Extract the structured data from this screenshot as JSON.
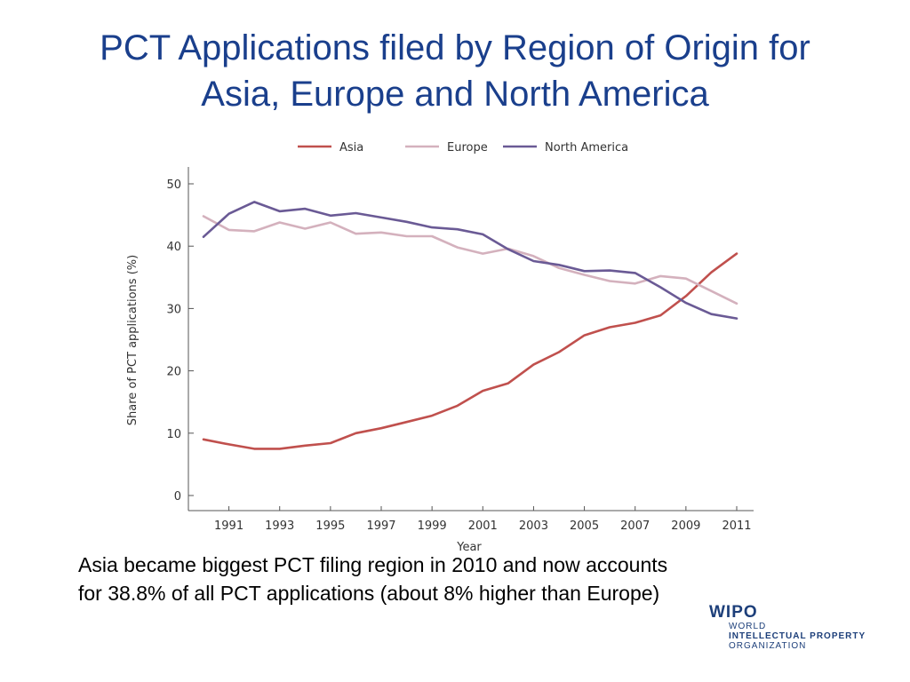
{
  "slide": {
    "title_line1": "PCT Applications filed by Region of Origin for",
    "title_line2": "Asia, Europe and North America",
    "caption_line1": "Asia became biggest PCT filing region in 2010 and now accounts",
    "caption_line2": "for 38.8% of all PCT applications (about 8% higher than Europe)"
  },
  "logo": {
    "mark": "WIPO",
    "line1": "WORLD",
    "line2": "INTELLECTUAL PROPERTY",
    "line3": "ORGANIZATION"
  },
  "chart_data": {
    "type": "line",
    "title": "",
    "xlabel": "Year",
    "ylabel": "Share of PCT applications (%)",
    "xlim": [
      1990,
      2011
    ],
    "ylim": [
      0,
      50
    ],
    "yticks": [
      0,
      10,
      20,
      30,
      40,
      50
    ],
    "xticks": [
      1991,
      1993,
      1995,
      1997,
      1999,
      2001,
      2003,
      2005,
      2007,
      2009,
      2011
    ],
    "grid": false,
    "legend": "top-center",
    "x": [
      1990,
      1991,
      1992,
      1993,
      1994,
      1995,
      1996,
      1997,
      1998,
      1999,
      2000,
      2001,
      2002,
      2003,
      2004,
      2005,
      2006,
      2007,
      2008,
      2009,
      2010,
      2011
    ],
    "series": [
      {
        "name": "Asia",
        "color": "#c0504d",
        "values": [
          9.0,
          8.2,
          7.5,
          7.5,
          8.0,
          8.4,
          10.0,
          10.8,
          11.8,
          12.8,
          14.4,
          16.8,
          18.0,
          21.0,
          23.0,
          25.7,
          27.0,
          27.7,
          28.9,
          32.0,
          35.8,
          38.8
        ]
      },
      {
        "name": "Europe",
        "color": "#d4b1bd",
        "values": [
          44.8,
          42.6,
          42.4,
          43.8,
          42.8,
          43.8,
          42.0,
          42.2,
          41.6,
          41.6,
          39.8,
          38.8,
          39.6,
          38.4,
          36.5,
          35.4,
          34.4,
          34.0,
          35.2,
          34.8,
          32.8,
          30.8
        ]
      },
      {
        "name": "North America",
        "color": "#6a5a95",
        "values": [
          41.5,
          45.2,
          47.1,
          45.6,
          46.0,
          44.9,
          45.3,
          44.6,
          43.9,
          43.0,
          42.7,
          41.9,
          39.5,
          37.6,
          37.0,
          36.0,
          36.1,
          35.7,
          33.4,
          30.9,
          29.1,
          28.4
        ]
      }
    ]
  }
}
